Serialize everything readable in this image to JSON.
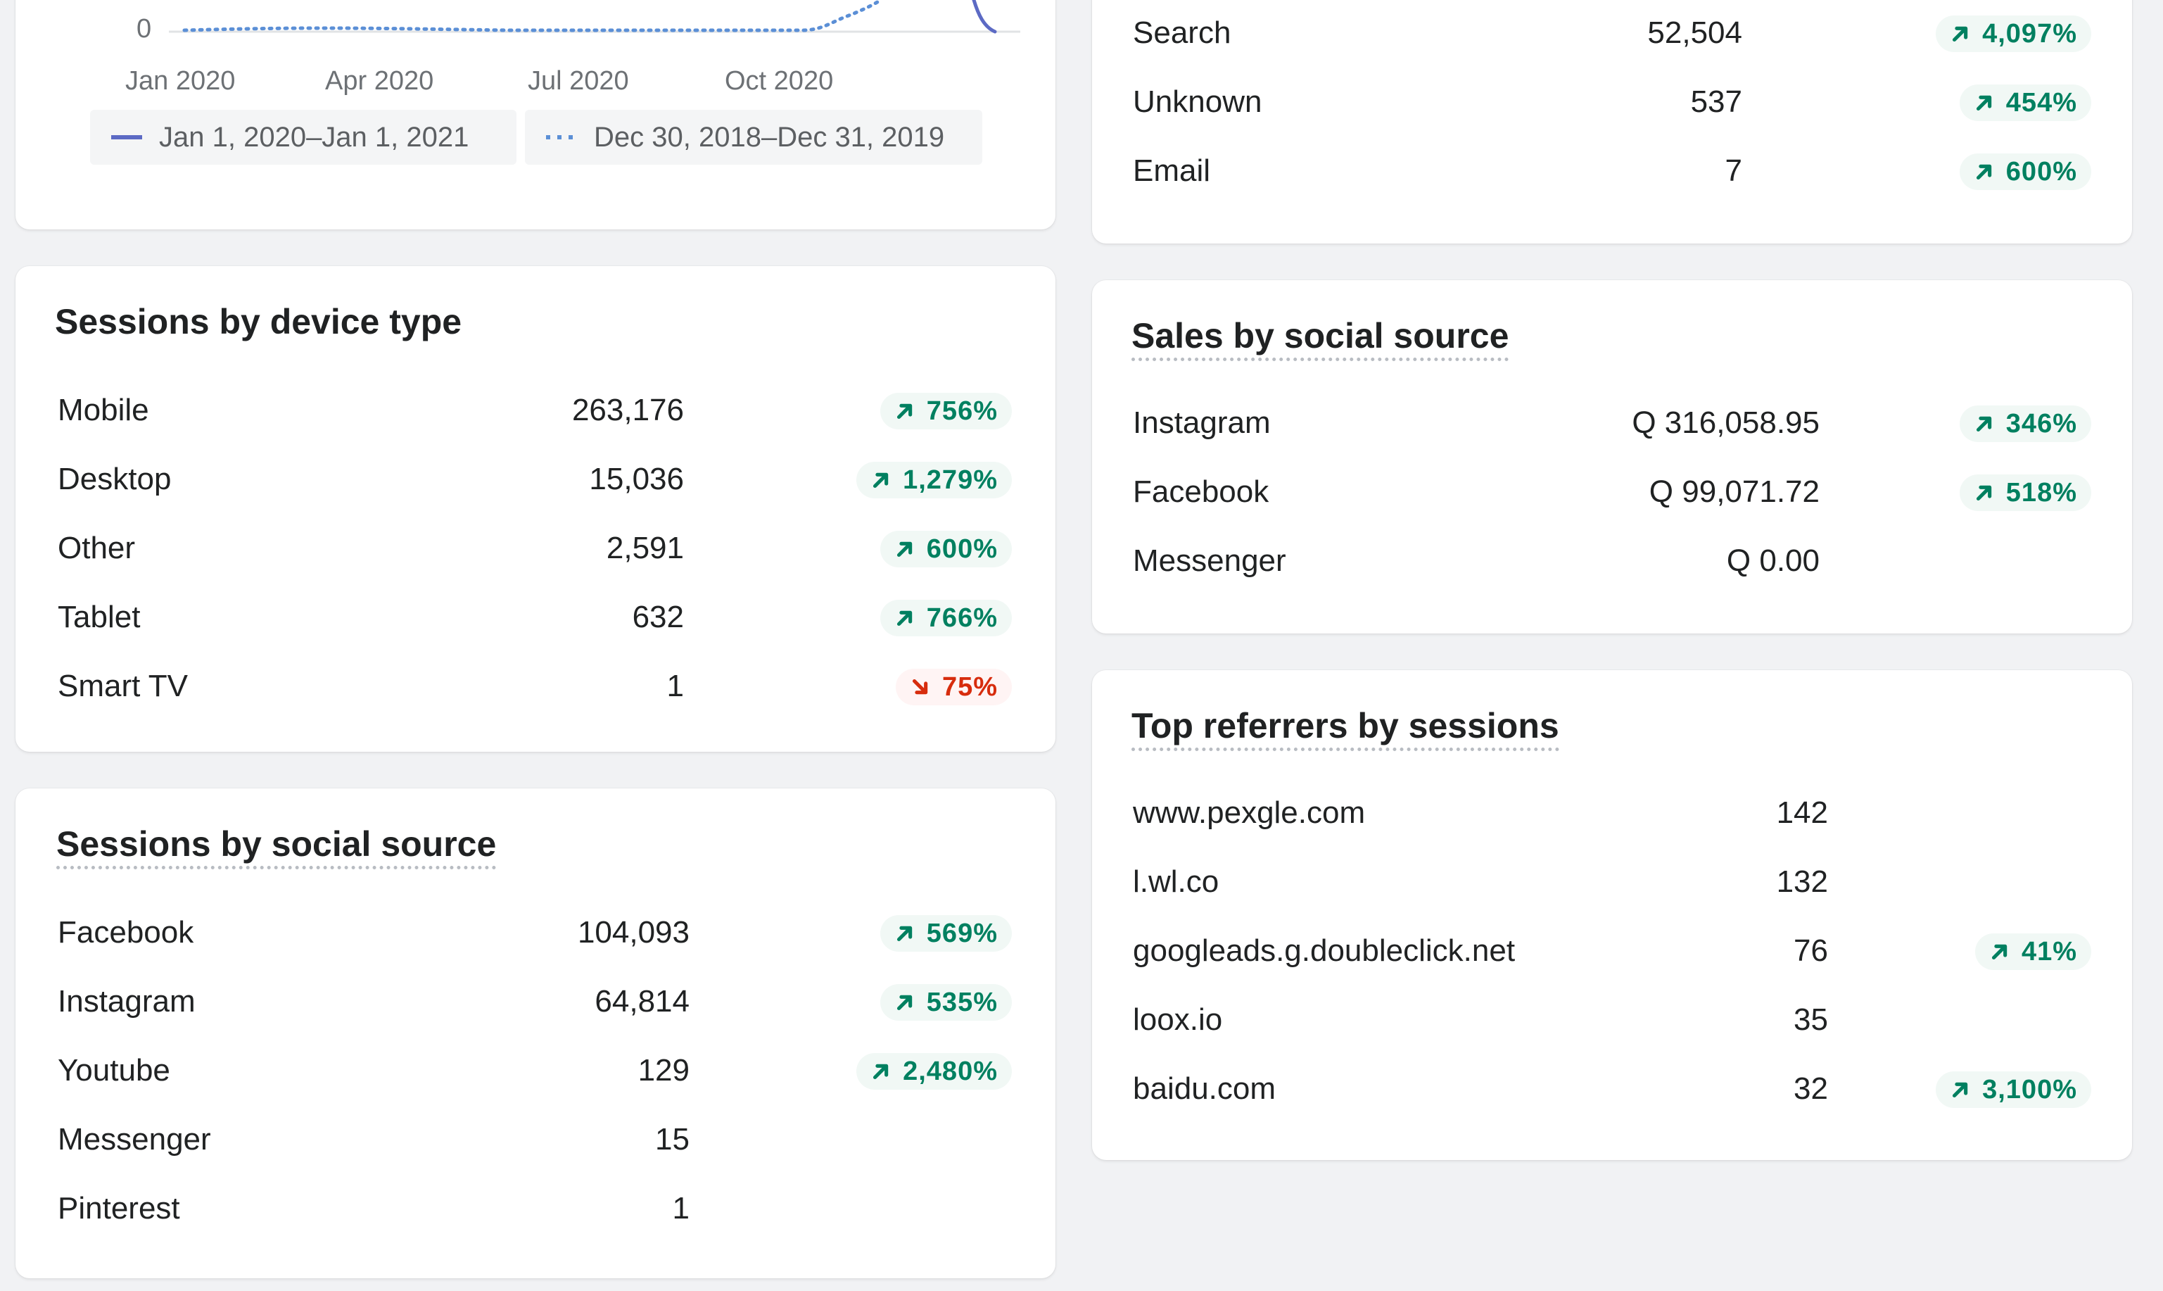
{
  "colors": {
    "accent": "#5c6ac4",
    "positive": "#008060",
    "negative": "#d72c0d",
    "link": "#2c6ecb",
    "comparison": "#5b8fd6"
  },
  "chart_card": {
    "chart_data": {
      "type": "line",
      "x": [
        "Jan 2020",
        "Apr 2020",
        "Jul 2020",
        "Oct 2020"
      ],
      "ytick": "0",
      "series": [
        {
          "name": "Jan 1, 2020–Jan 1, 2021",
          "style": "solid"
        },
        {
          "name": "Dec 30, 2018–Dec 31, 2019",
          "style": "dotted"
        }
      ]
    },
    "y_tick_label": "0",
    "x_ticks": [
      "Jan 2020",
      "Apr 2020",
      "Jul 2020",
      "Oct 2020"
    ],
    "legend": [
      {
        "label": "Jan 1, 2020–Jan 1, 2021",
        "style": "solid",
        "color": "#5c6ac4"
      },
      {
        "label": "Dec 30, 2018–Dec 31, 2019",
        "style": "dotted",
        "color": "#5b8fd6"
      }
    ]
  },
  "sessions_by_device": {
    "title": "Sessions by device type",
    "rows": [
      {
        "label": "Mobile",
        "value": "263,176",
        "change": "756%",
        "trend": "up"
      },
      {
        "label": "Desktop",
        "value": "15,036",
        "change": "1,279%",
        "trend": "up"
      },
      {
        "label": "Other",
        "value": "2,591",
        "change": "600%",
        "trend": "up"
      },
      {
        "label": "Tablet",
        "value": "632",
        "change": "766%",
        "trend": "up"
      },
      {
        "label": "Smart TV",
        "value": "1",
        "change": "75%",
        "trend": "down"
      }
    ]
  },
  "sessions_by_social": {
    "title": "Sessions by social source",
    "rows": [
      {
        "label": "Facebook",
        "value": "104,093",
        "change": "569%",
        "trend": "up"
      },
      {
        "label": "Instagram",
        "value": "64,814",
        "change": "535%",
        "trend": "up"
      },
      {
        "label": "Youtube",
        "value": "129",
        "change": "2,480%",
        "trend": "up"
      },
      {
        "label": "Messenger",
        "value": "15",
        "change": "",
        "trend": "none"
      },
      {
        "label": "Pinterest",
        "value": "1",
        "change": "",
        "trend": "none"
      }
    ]
  },
  "sessions_by_traffic": {
    "rows": [
      {
        "label": "Search",
        "value": "52,504",
        "change": "4,097%",
        "trend": "up"
      },
      {
        "label": "Unknown",
        "value": "537",
        "change": "454%",
        "trend": "up"
      },
      {
        "label": "Email",
        "value": "7",
        "change": "600%",
        "trend": "up"
      }
    ]
  },
  "sales_by_social": {
    "title": "Sales by social source",
    "rows": [
      {
        "label": "Instagram",
        "value": "Q 316,058.95",
        "change": "346%",
        "trend": "up"
      },
      {
        "label": "Facebook",
        "value": "Q 99,071.72",
        "change": "518%",
        "trend": "up"
      },
      {
        "label": "Messenger",
        "value": "Q 0.00",
        "change": "",
        "trend": "none"
      }
    ]
  },
  "top_referrers": {
    "title": "Top referrers by sessions",
    "rows": [
      {
        "label": "www.pexgle.com",
        "value": "142",
        "change": "",
        "trend": "none"
      },
      {
        "label": "l.wl.co",
        "value": "132",
        "change": "",
        "trend": "none"
      },
      {
        "label": "googleads.g.doubleclick.net",
        "value": "76",
        "change": "41%",
        "trend": "up"
      },
      {
        "label": "loox.io",
        "value": "35",
        "change": "",
        "trend": "none"
      },
      {
        "label": "baidu.com",
        "value": "32",
        "change": "3,100%",
        "trend": "up"
      }
    ]
  }
}
